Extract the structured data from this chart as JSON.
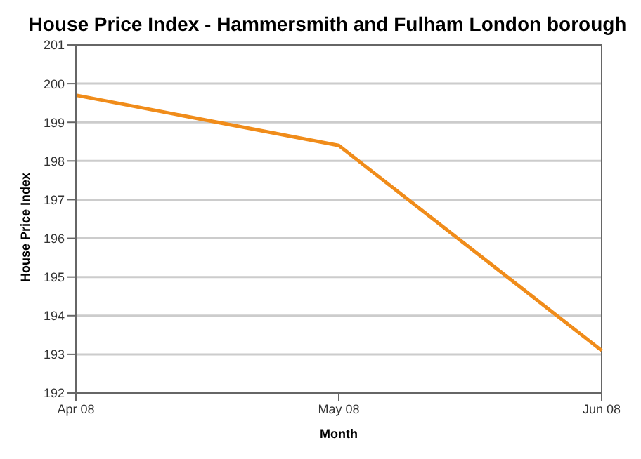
{
  "chart_data": {
    "type": "line",
    "title": "House Price Index - Hammersmith and Fulham London borough",
    "xlabel": "Month",
    "ylabel": "House Price Index",
    "categories": [
      "Apr 08",
      "May 08",
      "Jun 08"
    ],
    "series": [
      {
        "color": "#f08c1a",
        "values": [
          199.7,
          198.4,
          193.1
        ]
      }
    ],
    "ylim": [
      192,
      201
    ],
    "yticks": [
      192,
      193,
      194,
      195,
      196,
      197,
      198,
      199,
      200,
      201
    ],
    "grid": "y",
    "marker": "none",
    "line_style": "solid"
  }
}
